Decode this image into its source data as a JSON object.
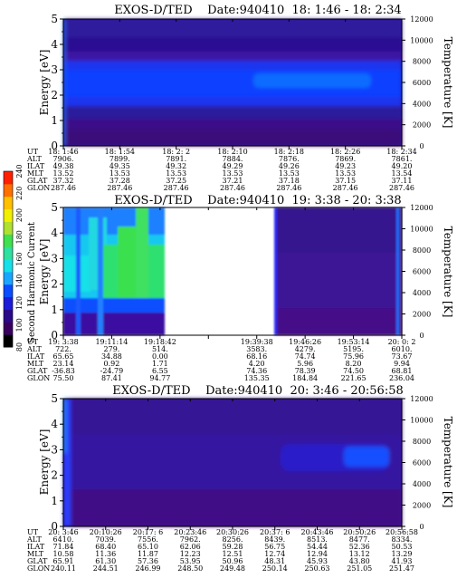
{
  "colorbar": {
    "label": "Second Harmonic Current",
    "ticks": [
      "80",
      "100",
      "120",
      "140",
      "160",
      "180",
      "200",
      "220",
      "240"
    ],
    "colors": [
      "#000000",
      "#3a0060",
      "#2b0a8a",
      "#1c1cd8",
      "#0a4cff",
      "#1aa6ff",
      "#18e0e8",
      "#2fe0a0",
      "#40e050",
      "#b0e030",
      "#f0f000",
      "#ffc000",
      "#ff7000",
      "#ff2000"
    ]
  },
  "chart_data": [
    {
      "type": "heatmap",
      "title": "EXOS-D/TED    Date:940410  18: 1:46 - 18: 2:34",
      "ylabel": "Energy [eV]",
      "ylabel_right": "Temperature [K]",
      "ylim": [
        0,
        5
      ],
      "yticks": [
        "0",
        "1",
        "2",
        "3",
        "4",
        "5"
      ],
      "ylim_right": [
        0,
        12000
      ],
      "yticks_right": [
        "0",
        "2000",
        "4000",
        "6000",
        "8000",
        "10000",
        "12000"
      ],
      "rows": [
        {
          "label": "UT",
          "values": [
            "18: 1:46",
            "18: 1:54",
            "18: 2: 2",
            "18: 2:10",
            "18: 2:18",
            "18: 2:26",
            "18: 2:34"
          ]
        },
        {
          "label": "ALT",
          "values": [
            "7906.",
            "7899.",
            "7891.",
            "7884.",
            "7876.",
            "7869.",
            "7861."
          ]
        },
        {
          "label": "ILAT",
          "values": [
            "49.38",
            "49.35",
            "49.32",
            "49.29",
            "49.26",
            "49.23",
            "49.20"
          ]
        },
        {
          "label": "MLT",
          "values": [
            "13.52",
            "13.53",
            "13.53",
            "13.53",
            "13.53",
            "13.53",
            "13.54"
          ]
        },
        {
          "label": "GLAT",
          "values": [
            "37.32",
            "37.28",
            "37.25",
            "37.21",
            "37.18",
            "37.15",
            "37.11"
          ]
        },
        {
          "label": "GLON",
          "values": [
            "287.46",
            "287.46",
            "287.46",
            "287.46",
            "287.46",
            "287.46",
            "287.46"
          ]
        }
      ]
    },
    {
      "type": "heatmap",
      "title": "EXOS-D/TED    Date:940410  19: 3:38 - 20: 3:38",
      "ylabel": "Energy [eV]",
      "ylabel_right": "Temperature [K]",
      "ylim": [
        0,
        5
      ],
      "yticks": [
        "0",
        "1",
        "2",
        "3",
        "4",
        "5"
      ],
      "ylim_right": [
        0,
        12000
      ],
      "yticks_right": [
        "0",
        "2000",
        "4000",
        "6000",
        "8000",
        "10000",
        "12000"
      ],
      "rows": [
        {
          "label": "UT",
          "values": [
            "19: 3:38",
            "19:11:14",
            "19:18:42",
            "",
            "19:39:38",
            "19:46:26",
            "19:53:14",
            "20: 0: 2"
          ]
        },
        {
          "label": "ALT",
          "values": [
            "722.",
            "279.",
            "514.",
            "",
            "3583.",
            "4279.",
            "5195.",
            "6010."
          ]
        },
        {
          "label": "ILAT",
          "values": [
            "65.65",
            "34.88",
            "0.00",
            "",
            "68.16",
            "74.74",
            "75.96",
            "73.67"
          ]
        },
        {
          "label": "MLT",
          "values": [
            "23.14",
            "0.92",
            "1.71",
            "",
            "4.20",
            "5.96",
            "8.20",
            "9.94"
          ]
        },
        {
          "label": "GLAT",
          "values": [
            "-36.83",
            "-24.79",
            "6.55",
            "",
            "74.36",
            "78.39",
            "74.50",
            "68.81"
          ]
        },
        {
          "label": "GLON",
          "values": [
            "75.50",
            "87.41",
            "94.77",
            "",
            "135.35",
            "184.84",
            "221.65",
            "236.04"
          ]
        }
      ]
    },
    {
      "type": "heatmap",
      "title": "EXOS-D/TED    Date:940410  20: 3:46 - 20:56:58",
      "ylabel": "Energy [eV]",
      "ylabel_right": "Temperature [K]",
      "ylim": [
        0,
        5
      ],
      "yticks": [
        "0",
        "1",
        "2",
        "3",
        "4",
        "5"
      ],
      "ylim_right": [
        0,
        12000
      ],
      "yticks_right": [
        "0",
        "2000",
        "4000",
        "6000",
        "8000",
        "10000",
        "12000"
      ],
      "rows": [
        {
          "label": "UT",
          "values": [
            "20: 3:46",
            "20:10:26",
            "20:17: 6",
            "20:23:46",
            "20:30:26",
            "20:37: 6",
            "20:43:46",
            "20:50:26",
            "20:56:58"
          ]
        },
        {
          "label": "ALT",
          "values": [
            "6410.",
            "7039.",
            "7556.",
            "7962.",
            "8256.",
            "8439.",
            "8513.",
            "8477.",
            "8334."
          ]
        },
        {
          "label": "ILAT",
          "values": [
            "71.84",
            "68.40",
            "65.10",
            "62.06",
            "59.28",
            "56.75",
            "54.44",
            "52.36",
            "50.53"
          ]
        },
        {
          "label": "MLT",
          "values": [
            "10.58",
            "11.36",
            "11.87",
            "12.23",
            "12.51",
            "12.74",
            "12.94",
            "13.12",
            "13.29"
          ]
        },
        {
          "label": "GLAT",
          "values": [
            "65.91",
            "61.30",
            "57.36",
            "53.95",
            "50.96",
            "48.31",
            "45.93",
            "43.80",
            "41.93"
          ]
        },
        {
          "label": "GLON",
          "values": [
            "240.11",
            "244.51",
            "246.99",
            "248.50",
            "249.48",
            "250.14",
            "250.63",
            "251.05",
            "251.47"
          ]
        }
      ]
    }
  ]
}
